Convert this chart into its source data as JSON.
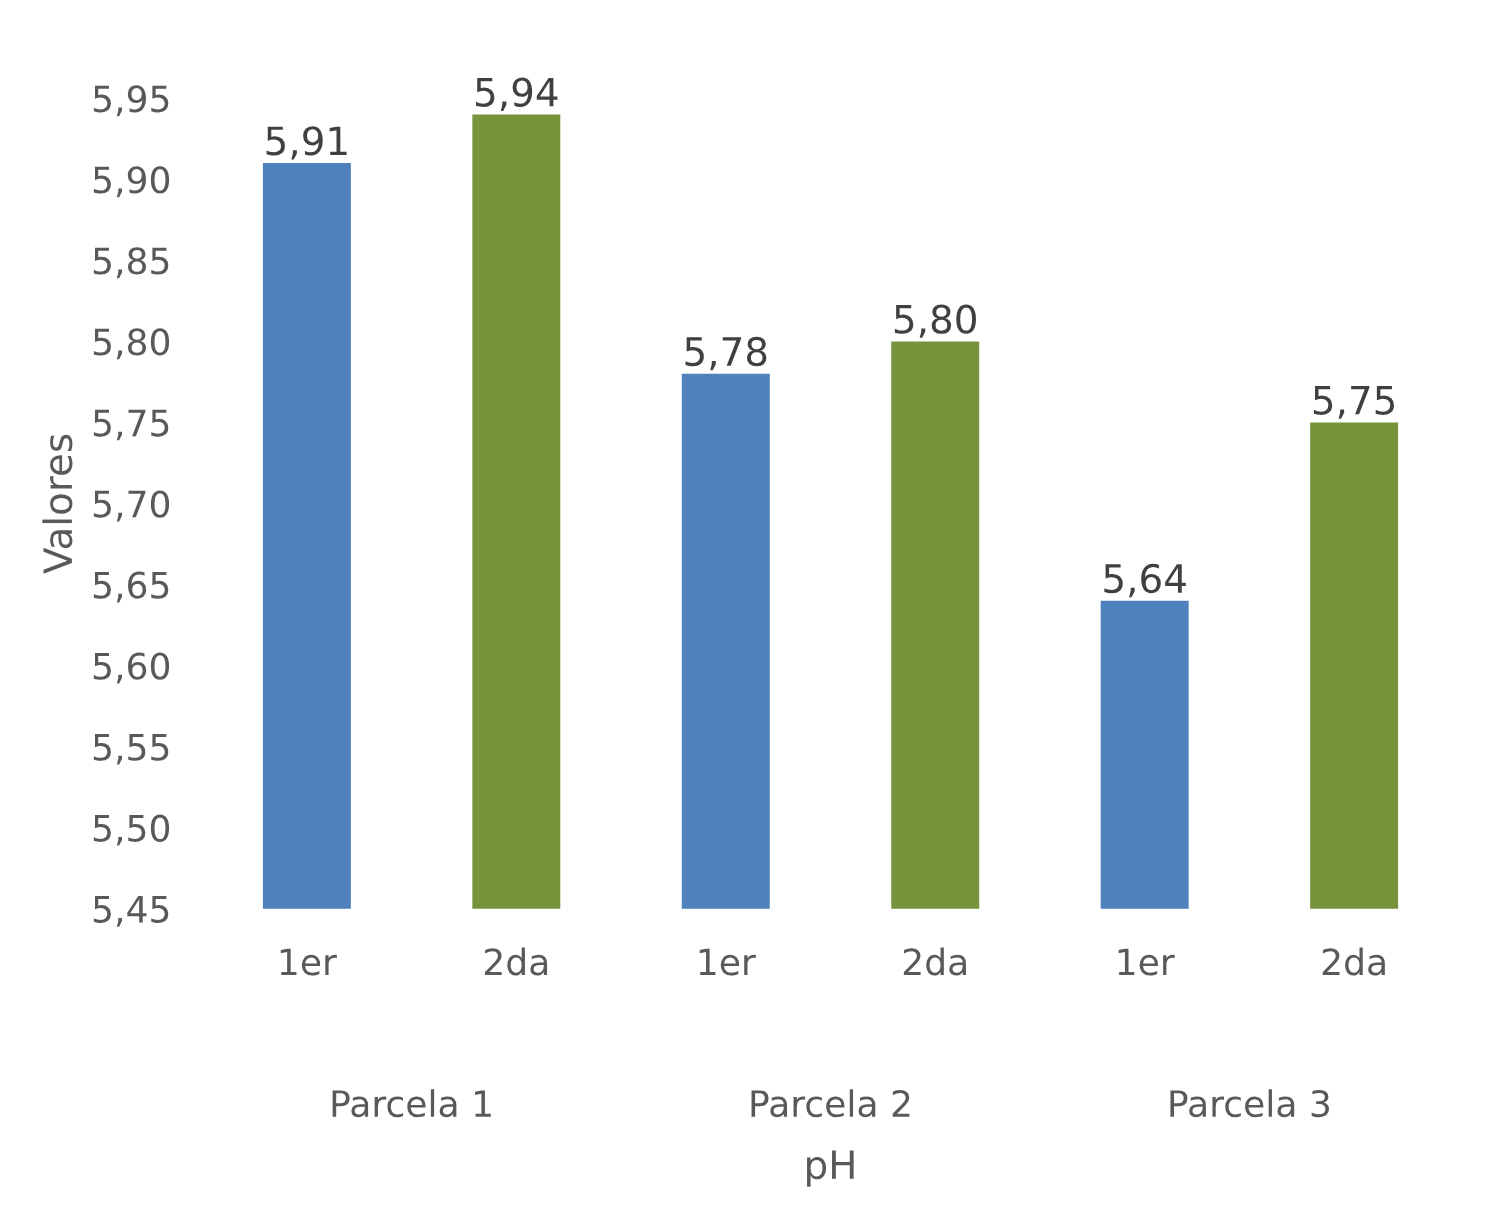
{
  "chart_data": {
    "type": "bar",
    "xlabel": "pH",
    "ylabel": "Valores",
    "categories": [
      "1er",
      "2da",
      "1er",
      "2da",
      "1er",
      "2da"
    ],
    "values": [
      5.91,
      5.94,
      5.78,
      5.8,
      5.64,
      5.75
    ],
    "value_labels": [
      "5,91",
      "5,94",
      "5,78",
      "5,80",
      "5,64",
      "5,75"
    ],
    "colors": [
      "#4f81bd",
      "#77933c",
      "#4f81bd",
      "#77933c",
      "#4f81bd",
      "#77933c"
    ],
    "annotations": [
      "Parcela 1",
      "Parcela 2",
      "Parcela 3"
    ],
    "ylim": [
      5.45,
      5.95
    ],
    "yticks": [
      {
        "value": 5.45,
        "label": "5,45"
      },
      {
        "value": 5.5,
        "label": "5,50"
      },
      {
        "value": 5.55,
        "label": "5,55"
      },
      {
        "value": 5.6,
        "label": "5,60"
      },
      {
        "value": 5.65,
        "label": "5,65"
      },
      {
        "value": 5.7,
        "label": "5,70"
      },
      {
        "value": 5.75,
        "label": "5,75"
      },
      {
        "value": 5.8,
        "label": "5,80"
      },
      {
        "value": 5.85,
        "label": "5,85"
      },
      {
        "value": 5.9,
        "label": "5,90"
      },
      {
        "value": 5.95,
        "label": "5,95"
      }
    ],
    "grid": false,
    "legend": false
  }
}
